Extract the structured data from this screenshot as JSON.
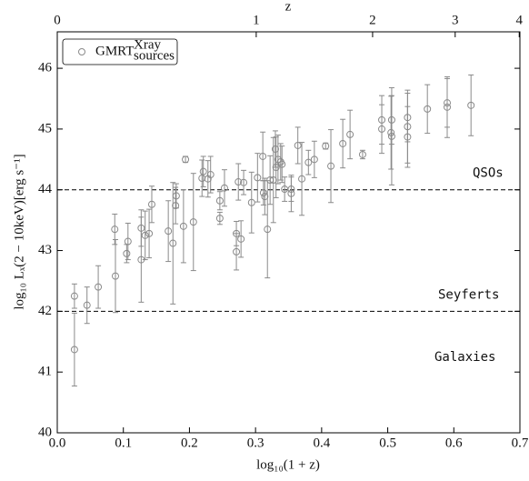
{
  "chart_data": {
    "type": "scatter",
    "x_label": "log₁₀(1 + z)",
    "y_label": "log₁₀ Lₓ(2 − 10keV)[erg  s⁻¹]",
    "x2_label": "z",
    "xlim": [
      0,
      0.7
    ],
    "xticks": [
      {
        "value": 0,
        "label": "0.0"
      },
      0.1,
      0.2,
      0.3,
      0.4,
      0.5,
      0.6,
      0.7
    ],
    "ylim": [
      40,
      46.6
    ],
    "yticks": [
      40,
      41,
      42,
      43,
      44,
      45,
      46
    ],
    "x2ticks": [
      0,
      1,
      2,
      3,
      4
    ],
    "hlines": [
      {
        "value": 44,
        "label": "QSOs"
      },
      {
        "value": 42,
        "label": "Seyferts"
      }
    ],
    "region_label": "Galaxies",
    "legend": "upper left",
    "series": [
      {
        "name": "GMRT",
        "name_sup": "Xray",
        "name_sub": "sources",
        "color": "#8a8a8a",
        "x": [
          0.026,
          0.026,
          0.045,
          0.062,
          0.087,
          0.088,
          0.105,
          0.107,
          0.127,
          0.127,
          0.133,
          0.139,
          0.143,
          0.168,
          0.175,
          0.179,
          0.18,
          0.191,
          0.194,
          0.206,
          0.219,
          0.221,
          0.228,
          0.232,
          0.246,
          0.246,
          0.253,
          0.271,
          0.271,
          0.274,
          0.278,
          0.282,
          0.294,
          0.303,
          0.311,
          0.312,
          0.314,
          0.318,
          0.322,
          0.327,
          0.33,
          0.331,
          0.334,
          0.338,
          0.34,
          0.344,
          0.354,
          0.354,
          0.364,
          0.37,
          0.38,
          0.389,
          0.406,
          0.414,
          0.432,
          0.443,
          0.462,
          0.491,
          0.491,
          0.505,
          0.506,
          0.506,
          0.53,
          0.53,
          0.53,
          0.56,
          0.59,
          0.59,
          0.626
        ],
        "values": [
          42.25,
          41.37,
          42.1,
          42.4,
          43.35,
          42.58,
          42.95,
          43.15,
          43.37,
          42.85,
          43.25,
          43.28,
          43.76,
          43.32,
          43.12,
          43.74,
          43.9,
          43.4,
          44.5,
          43.47,
          44.19,
          44.3,
          44.18,
          44.25,
          43.82,
          43.53,
          44.03,
          43.28,
          42.98,
          44.13,
          43.19,
          44.12,
          43.79,
          44.2,
          44.55,
          43.95,
          43.89,
          43.35,
          44.16,
          44.16,
          44.67,
          44.37,
          44.5,
          44.46,
          44.42,
          44.01,
          44.01,
          43.94,
          44.73,
          44.18,
          44.45,
          44.5,
          44.72,
          44.39,
          44.76,
          44.91,
          44.58,
          45.15,
          45.0,
          44.94,
          44.88,
          45.15,
          45.19,
          45.04,
          44.87,
          45.33,
          45.43,
          45.36,
          45.39
        ],
        "errors": [
          0.2,
          0.6,
          0.3,
          0.35,
          0.25,
          0.6,
          0.15,
          0.3,
          0.3,
          0.7,
          0.4,
          0.4,
          0.3,
          0.5,
          1.0,
          0.3,
          0.2,
          0.6,
          0.05,
          0.8,
          0.3,
          0.25,
          0.3,
          0.3,
          0.15,
          0.1,
          0.3,
          0.2,
          0.3,
          0.3,
          0.3,
          0.2,
          0.5,
          0.4,
          0.4,
          0.2,
          0.3,
          0.8,
          0.4,
          0.7,
          0.3,
          0.5,
          0.4,
          0.3,
          0.3,
          0.2,
          0.2,
          0.3,
          0.3,
          0.6,
          0.2,
          0.3,
          0.05,
          0.6,
          0.4,
          0.4,
          0.07,
          0.4,
          0.4,
          0.6,
          0.8,
          0.4,
          0.4,
          0.6,
          0.5,
          0.4,
          0.4,
          0.5,
          0.5
        ]
      }
    ]
  }
}
